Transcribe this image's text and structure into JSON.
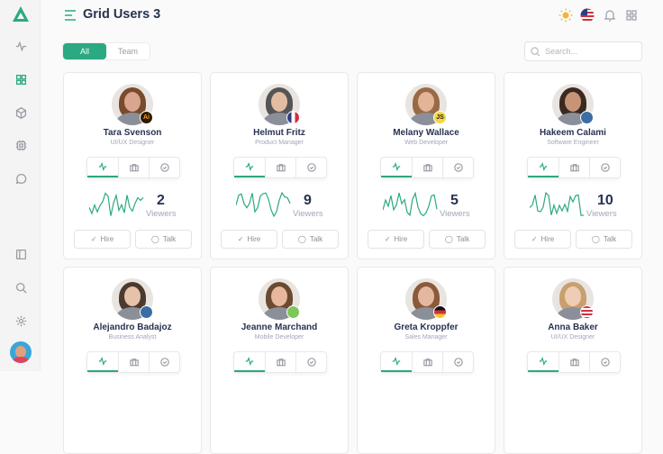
{
  "header": {
    "title": "Grid Users 3"
  },
  "filters": {
    "all": "All",
    "team": "Team"
  },
  "search": {
    "placeholder": "Search..."
  },
  "labels": {
    "viewers": "Viewers",
    "hire": "Hire",
    "talk": "Talk"
  },
  "colors": {
    "accent": "#2ba982",
    "text": "#283252",
    "muted": "#a2a5b9"
  },
  "users": [
    {
      "name": "Tara Svenson",
      "role": "UI/UX Designer",
      "viewers": "2",
      "badge": "Ai",
      "badge_type": "illustrator",
      "skin": "#d9a58e",
      "hair": "#7a4a2e"
    },
    {
      "name": "Helmut Fritz",
      "role": "Product Manager",
      "viewers": "9",
      "badge": "",
      "badge_type": "flag-fr",
      "skin": "#e2bda2",
      "hair": "#555"
    },
    {
      "name": "Melany Wallace",
      "role": "Web Developer",
      "viewers": "5",
      "badge": "JS",
      "badge_type": "javascript",
      "skin": "#e4b497",
      "hair": "#9a6a45"
    },
    {
      "name": "Hakeem Calami",
      "role": "Software Engineer",
      "viewers": "10",
      "badge": "",
      "badge_type": "python",
      "skin": "#c89478",
      "hair": "#3a2a20"
    },
    {
      "name": "Alejandro Badajoz",
      "role": "Business Analyst",
      "viewers": "",
      "badge": "",
      "badge_type": "python",
      "skin": "#e6c2aa",
      "hair": "#4a3a30"
    },
    {
      "name": "Jeanne Marchand",
      "role": "Mobile Developer",
      "viewers": "",
      "badge": "",
      "badge_type": "android",
      "skin": "#e6b89c",
      "hair": "#6a4a30"
    },
    {
      "name": "Greta Kroppfer",
      "role": "Sales Manager",
      "viewers": "",
      "badge": "",
      "badge_type": "flag-de",
      "skin": "#e4b8a0",
      "hair": "#8a5a3a"
    },
    {
      "name": "Anna Baker",
      "role": "UI/UX Designer",
      "viewers": "",
      "badge": "",
      "badge_type": "flag-us",
      "skin": "#efcdb5",
      "hair": "#c8a070"
    }
  ]
}
